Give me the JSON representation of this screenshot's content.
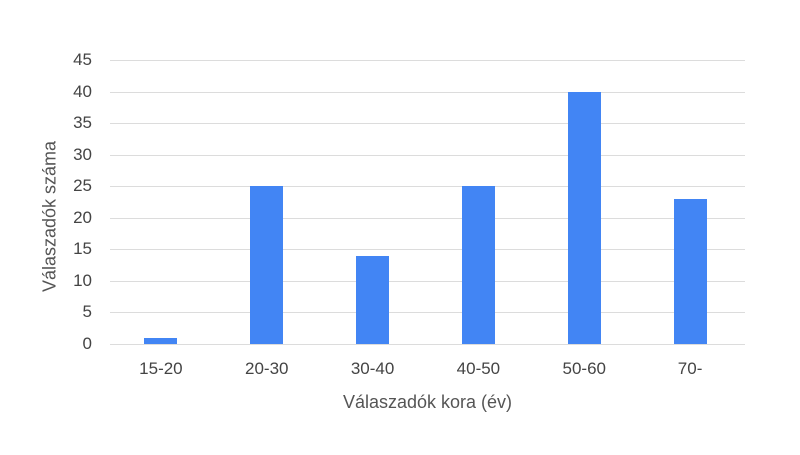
{
  "chart_data": {
    "type": "bar",
    "title": "",
    "xlabel": "Válaszadók kora (év)",
    "ylabel": "Válaszadók száma",
    "categories": [
      "15-20",
      "20-30",
      "30-40",
      "40-50",
      "50-60",
      "70-"
    ],
    "values": [
      1,
      25,
      14,
      25,
      40,
      23
    ],
    "ylim": [
      0,
      45
    ],
    "yticks": [
      "0",
      "5",
      "10",
      "15",
      "20",
      "25",
      "30",
      "35",
      "40",
      "45"
    ],
    "grid": true,
    "legend": "none",
    "bar_color": "#4285f4"
  }
}
